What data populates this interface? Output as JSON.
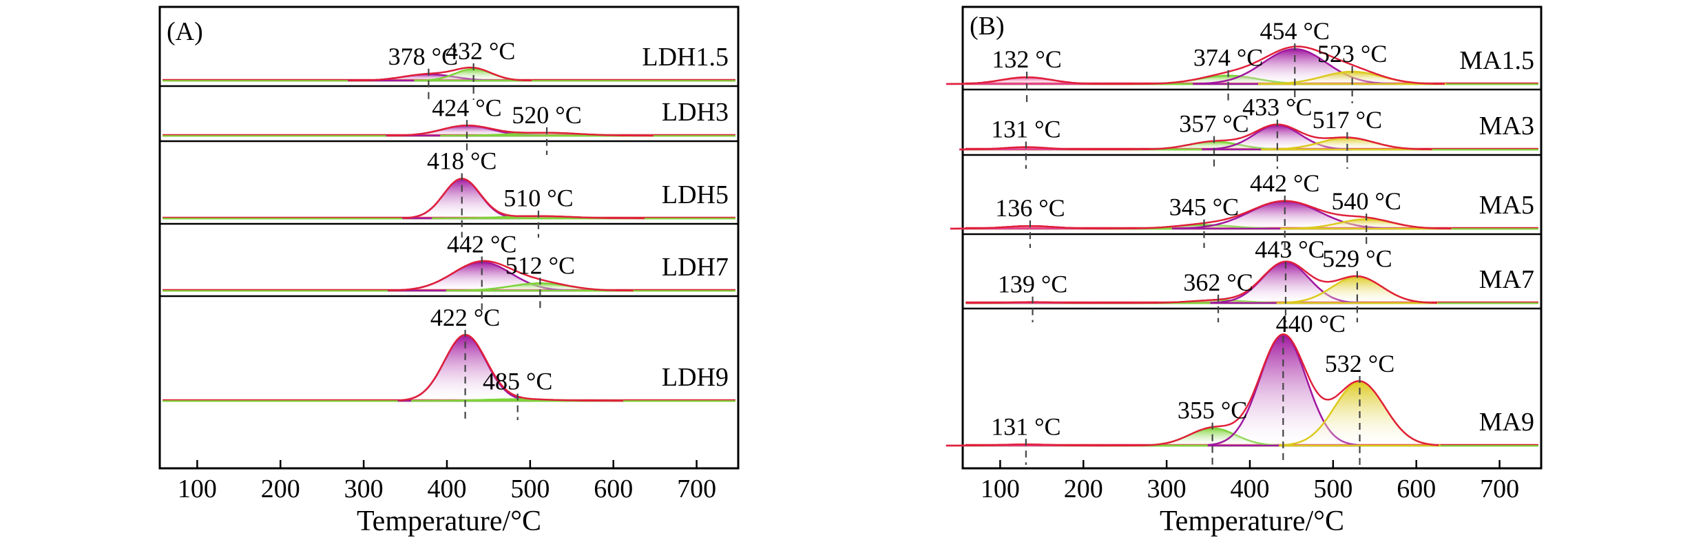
{
  "colors": {
    "magenta": "#a0169e",
    "pink": "#e33f8e",
    "green": "#7fd23a",
    "yellow": "#dcc91e",
    "envelope": "#e0203a",
    "raw": "#555555"
  },
  "chart_data": [
    {
      "type": "area",
      "panel_label": "(A)",
      "xlabel": "Temperature/°C",
      "ylabel": "",
      "xlim": [
        55,
        750
      ],
      "xticks": [
        "100",
        "200",
        "300",
        "400",
        "500",
        "600",
        "700"
      ],
      "grid": false,
      "rows": [
        {
          "name": "LDH1.5",
          "peaks": [
            {
              "center": 378,
              "label": "378 °C",
              "height": 0.12,
              "width": 30,
              "color": "magenta"
            },
            {
              "center": 432,
              "label": "432 °C",
              "height": 0.22,
              "width": 22,
              "color": "green"
            }
          ]
        },
        {
          "name": "LDH3",
          "peaks": [
            {
              "center": 424,
              "label": "424 °C",
              "height": 0.35,
              "width": 30,
              "color": "magenta"
            },
            {
              "center": 520,
              "label": "520 °C",
              "height": 0.1,
              "width": 40,
              "color": "green"
            }
          ]
        },
        {
          "name": "LDH5",
          "peaks": [
            {
              "center": 418,
              "label": "418 °C",
              "height": 0.7,
              "width": 22,
              "color": "magenta"
            },
            {
              "center": 510,
              "label": "510 °C",
              "height": 0.04,
              "width": 40,
              "color": "green"
            }
          ]
        },
        {
          "name": "LDH7",
          "peaks": [
            {
              "center": 442,
              "label": "442 °C",
              "height": 0.62,
              "width": 35,
              "color": "magenta"
            },
            {
              "center": 512,
              "label": "512 °C",
              "height": 0.16,
              "width": 35,
              "color": "green"
            }
          ]
        },
        {
          "name": "LDH9",
          "peaks": [
            {
              "center": 422,
              "label": "422 °C",
              "height": 0.78,
              "width": 25,
              "color": "magenta"
            },
            {
              "center": 485,
              "label": "485 °C",
              "height": 0.02,
              "width": 40,
              "color": "green"
            }
          ]
        }
      ]
    },
    {
      "type": "area",
      "panel_label": "(B)",
      "xlabel": "Temperature/°C",
      "ylabel": "",
      "xlim": [
        55,
        750
      ],
      "xticks": [
        "100",
        "200",
        "300",
        "400",
        "500",
        "600",
        "700"
      ],
      "grid": false,
      "rows": [
        {
          "name": "MA1.5",
          "peaks": [
            {
              "center": 132,
              "label": "132 °C",
              "height": 0.12,
              "width": 30,
              "color": "pink"
            },
            {
              "center": 374,
              "label": "374 °C",
              "height": 0.15,
              "width": 35,
              "color": "green"
            },
            {
              "center": 454,
              "label": "454 °C",
              "height": 0.62,
              "width": 38,
              "color": "magenta"
            },
            {
              "center": 523,
              "label": "523 °C",
              "height": 0.22,
              "width": 35,
              "color": "yellow"
            }
          ]
        },
        {
          "name": "MA3",
          "peaks": [
            {
              "center": 131,
              "label": "131 °C",
              "height": 0.06,
              "width": 25,
              "color": "pink"
            },
            {
              "center": 357,
              "label": "357 °C",
              "height": 0.2,
              "width": 30,
              "color": "green"
            },
            {
              "center": 433,
              "label": "433 °C",
              "height": 0.62,
              "width": 28,
              "color": "magenta"
            },
            {
              "center": 517,
              "label": "517 °C",
              "height": 0.3,
              "width": 32,
              "color": "yellow"
            }
          ]
        },
        {
          "name": "MA5",
          "peaks": [
            {
              "center": 136,
              "label": "136 °C",
              "height": 0.05,
              "width": 30,
              "color": "pink"
            },
            {
              "center": 345,
              "label": "345 °C",
              "height": 0.07,
              "width": 35,
              "color": "green"
            },
            {
              "center": 442,
              "label": "442 °C",
              "height": 0.52,
              "width": 42,
              "color": "magenta"
            },
            {
              "center": 540,
              "label": "540 °C",
              "height": 0.18,
              "width": 32,
              "color": "yellow"
            }
          ]
        },
        {
          "name": "MA7",
          "peaks": [
            {
              "center": 139,
              "label": "139 °C",
              "height": 0.02,
              "width": 25,
              "color": "pink"
            },
            {
              "center": 362,
              "label": "362 °C",
              "height": 0.06,
              "width": 32,
              "color": "green"
            },
            {
              "center": 443,
              "label": "443 °C",
              "height": 0.85,
              "width": 28,
              "color": "magenta"
            },
            {
              "center": 529,
              "label": "529 °C",
              "height": 0.55,
              "width": 30,
              "color": "yellow"
            }
          ]
        },
        {
          "name": "MA9",
          "peaks": [
            {
              "center": 131,
              "label": "131 °C",
              "height": 0.01,
              "width": 30,
              "color": "pink"
            },
            {
              "center": 355,
              "label": "355 °C",
              "height": 0.15,
              "width": 28,
              "color": "green"
            },
            {
              "center": 440,
              "label": "440 °C",
              "height": 0.95,
              "width": 28,
              "color": "magenta"
            },
            {
              "center": 532,
              "label": "532 °C",
              "height": 0.55,
              "width": 30,
              "color": "yellow"
            }
          ]
        }
      ]
    }
  ]
}
